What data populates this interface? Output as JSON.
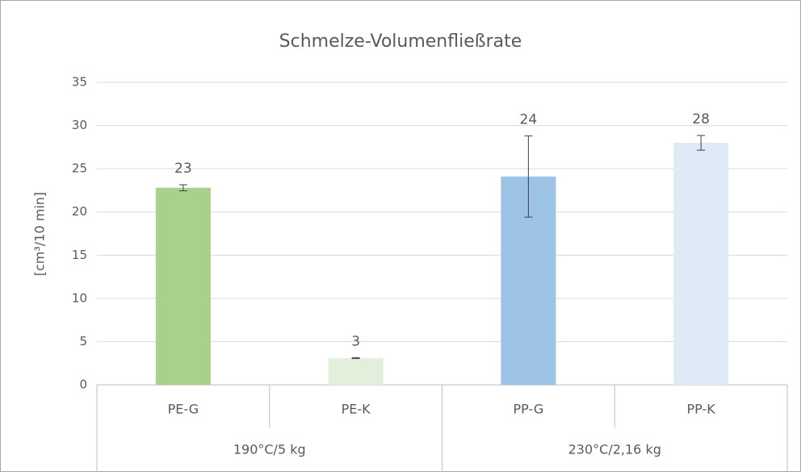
{
  "chart_data": {
    "type": "bar",
    "title": "Schmelze-Volumenfließrate",
    "y_label": "[cm³/10 min]",
    "categories": [
      "PE-G",
      "PE-K",
      "PP-G",
      "PP-K"
    ],
    "groups": [
      "190°C/5 kg",
      "230°C/2,16 kg"
    ],
    "values": [
      22.8,
      3.1,
      24.1,
      28.0
    ],
    "value_labels": [
      "23",
      "3",
      "24",
      "28"
    ],
    "errors": [
      0.35,
      0.05,
      4.7,
      0.85
    ],
    "colors": [
      "#a9d18e",
      "#e2efda",
      "#9dc3e6",
      "#deebf7"
    ],
    "ylim": [
      0,
      35
    ],
    "yticks": [
      0,
      5,
      10,
      15,
      20,
      25,
      30,
      35
    ],
    "grid": true
  }
}
